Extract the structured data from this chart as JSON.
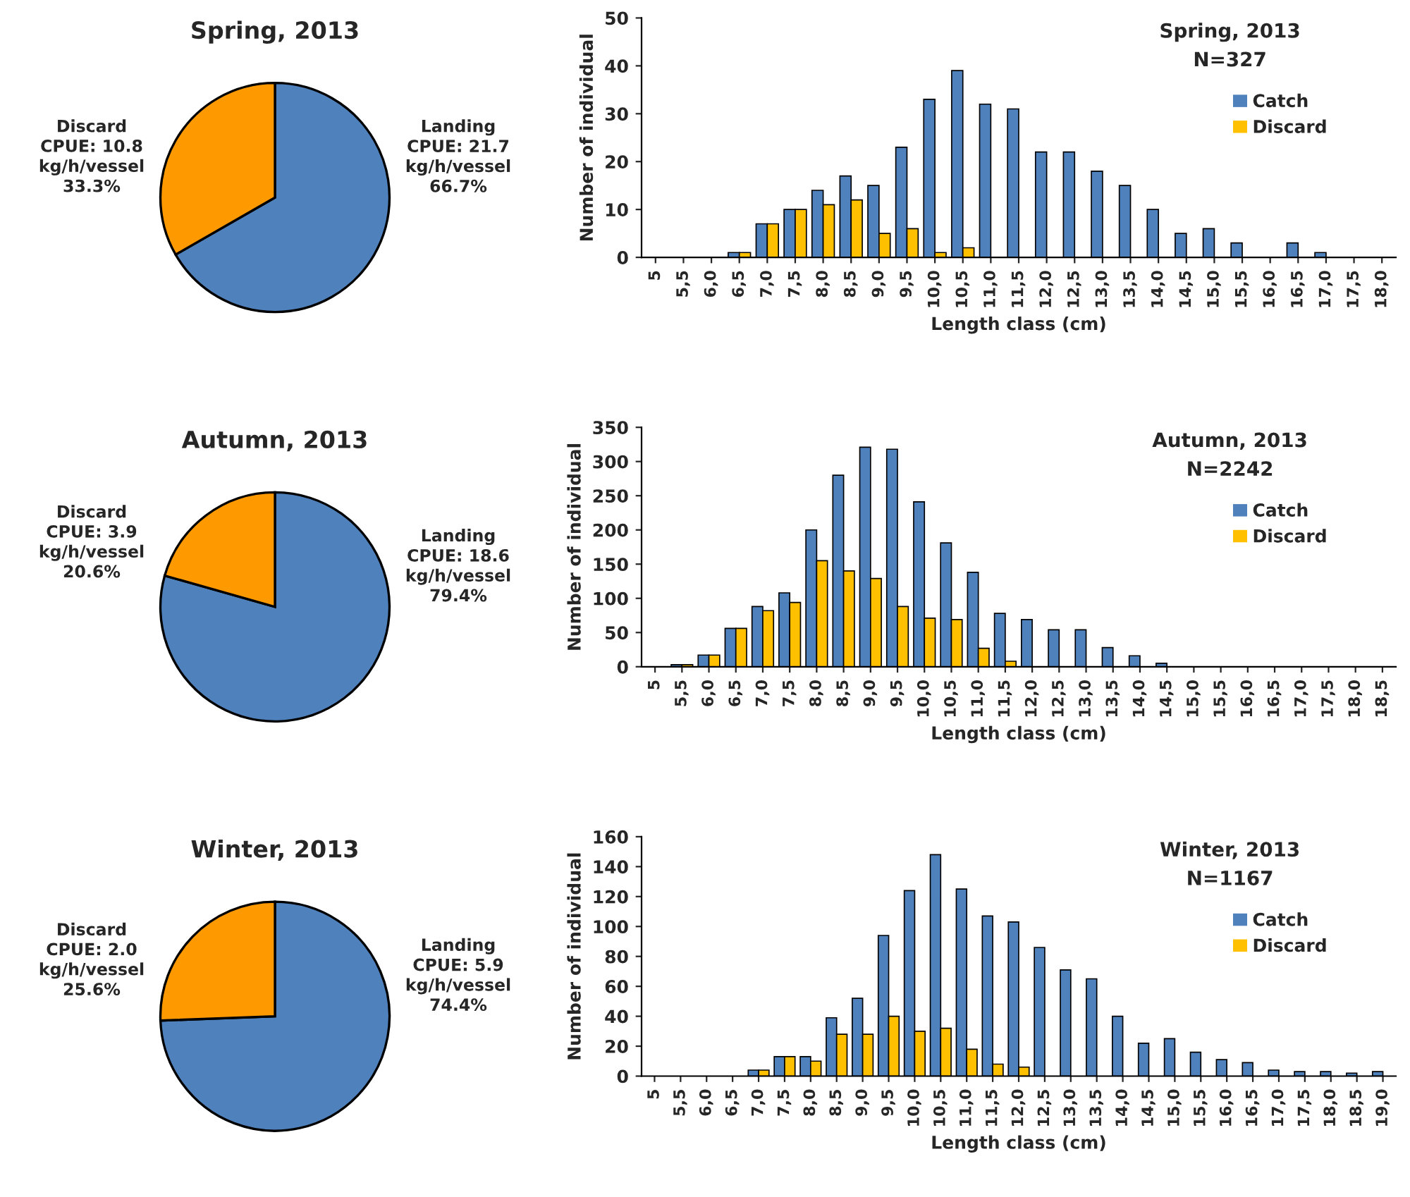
{
  "chart_data": [
    {
      "type": "pie",
      "title": "Spring, 2013",
      "categories": [
        "Landing",
        "Discard"
      ],
      "values": [
        66.7,
        33.3
      ],
      "colors": [
        "#4f81bd",
        "#ff9900"
      ],
      "value_labels": [
        "66.7%",
        "33.3%"
      ],
      "annotations": [
        "CPUE: 21.7\nkg/h/vessel",
        "CPUE: 10.8\nkg/h/vessel"
      ]
    },
    {
      "type": "bar",
      "title": "Spring, 2013",
      "subtitle": "N=327",
      "xlabel": "Length class (cm)",
      "ylabel": "Number of individual",
      "categories": [
        "5",
        "5,5",
        "6,0",
        "6,5",
        "7,0",
        "7,5",
        "8,0",
        "8,5",
        "9,0",
        "9,5",
        "10,0",
        "10,5",
        "11,0",
        "11,5",
        "12,0",
        "12,5",
        "13,0",
        "13,5",
        "14,0",
        "14,5",
        "15,0",
        "15,5",
        "16,0",
        "16,5",
        "17,0",
        "17,5",
        "18,0"
      ],
      "ylim": [
        0,
        50
      ],
      "yticks": [
        0,
        10,
        20,
        30,
        40,
        50
      ],
      "legend": "top right",
      "series": [
        {
          "name": "Catch",
          "color": "#4f81bd",
          "values": [
            0,
            0,
            0,
            1,
            7,
            10,
            14,
            17,
            15,
            23,
            33,
            39,
            32,
            31,
            22,
            22,
            18,
            15,
            10,
            5,
            6,
            3,
            0,
            3,
            1,
            0,
            0
          ]
        },
        {
          "name": "Discard",
          "color": "#ffc000",
          "values": [
            0,
            0,
            0,
            1,
            7,
            10,
            11,
            12,
            5,
            6,
            1,
            2,
            0,
            0,
            0,
            0,
            0,
            0,
            0,
            0,
            0,
            0,
            0,
            0,
            0,
            0,
            0
          ]
        }
      ]
    },
    {
      "type": "pie",
      "title": "Autumn, 2013",
      "categories": [
        "Landing",
        "Discard"
      ],
      "values": [
        79.4,
        20.6
      ],
      "colors": [
        "#4f81bd",
        "#ff9900"
      ],
      "value_labels": [
        "79.4%",
        "20.6%"
      ],
      "annotations": [
        "CPUE: 18.6\nkg/h/vessel",
        "CPUE: 3.9\nkg/h/vessel"
      ]
    },
    {
      "type": "bar",
      "title": "Autumn, 2013",
      "subtitle": "N=2242",
      "xlabel": "Length class (cm)",
      "ylabel": "Number of individual",
      "categories": [
        "5",
        "5,5",
        "6,0",
        "6,5",
        "7,0",
        "7,5",
        "8,0",
        "8,5",
        "9,0",
        "9,5",
        "10,0",
        "10,5",
        "11,0",
        "11,5",
        "12,0",
        "12,5",
        "13,0",
        "13,5",
        "14,0",
        "14,5",
        "15,0",
        "15,5",
        "16,0",
        "16,5",
        "17,0",
        "17,5",
        "18,0",
        "18,5"
      ],
      "ylim": [
        0,
        350
      ],
      "yticks": [
        0,
        50,
        100,
        150,
        200,
        250,
        300,
        350
      ],
      "legend": "top right",
      "series": [
        {
          "name": "Catch",
          "color": "#4f81bd",
          "values": [
            0,
            3,
            17,
            56,
            88,
            108,
            200,
            280,
            321,
            318,
            241,
            181,
            138,
            78,
            69,
            54,
            54,
            28,
            16,
            5,
            0,
            0,
            0,
            0,
            0,
            0,
            0,
            0
          ]
        },
        {
          "name": "Discard",
          "color": "#ffc000",
          "values": [
            0,
            3,
            17,
            56,
            82,
            94,
            155,
            140,
            129,
            88,
            71,
            69,
            27,
            8,
            0,
            0,
            0,
            0,
            0,
            0,
            0,
            0,
            0,
            0,
            0,
            0,
            0,
            0
          ]
        }
      ]
    },
    {
      "type": "pie",
      "title": "Winter, 2013",
      "categories": [
        "Landing",
        "Discard"
      ],
      "values": [
        74.4,
        25.6
      ],
      "colors": [
        "#4f81bd",
        "#ff9900"
      ],
      "value_labels": [
        "74.4%",
        "25.6%"
      ],
      "annotations": [
        "CPUE: 5.9\nkg/h/vessel",
        "CPUE: 2.0\nkg/h/vessel"
      ]
    },
    {
      "type": "bar",
      "title": "Winter, 2013",
      "subtitle": "N=1167",
      "xlabel": "Length class (cm)",
      "ylabel": "Number of individual",
      "categories": [
        "5",
        "5,5",
        "6,0",
        "6,5",
        "7,0",
        "7,5",
        "8,0",
        "8,5",
        "9,0",
        "9,5",
        "10,0",
        "10,5",
        "11,0",
        "11,5",
        "12,0",
        "12,5",
        "13,0",
        "13,5",
        "14,0",
        "14,5",
        "15,0",
        "15,5",
        "16,0",
        "16,5",
        "17,0",
        "17,5",
        "18,0",
        "18,5",
        "19,0"
      ],
      "ylim": [
        0,
        160
      ],
      "yticks": [
        0,
        20,
        40,
        60,
        80,
        100,
        120,
        140,
        160
      ],
      "legend": "top right",
      "series": [
        {
          "name": "Catch",
          "color": "#4f81bd",
          "values": [
            0,
            0,
            0,
            0,
            4,
            13,
            13,
            39,
            52,
            94,
            124,
            148,
            125,
            107,
            103,
            86,
            71,
            65,
            40,
            22,
            25,
            16,
            11,
            9,
            4,
            3,
            3,
            2,
            3
          ]
        },
        {
          "name": "Discard",
          "color": "#ffc000",
          "values": [
            0,
            0,
            0,
            0,
            4,
            13,
            10,
            28,
            28,
            40,
            30,
            32,
            18,
            8,
            6,
            0,
            0,
            0,
            0,
            0,
            0,
            0,
            0,
            0,
            0,
            0,
            0,
            0,
            0
          ]
        }
      ]
    }
  ]
}
